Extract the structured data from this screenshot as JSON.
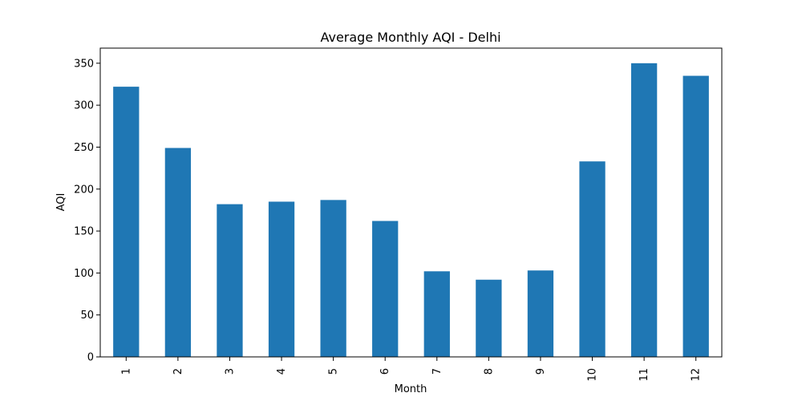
{
  "chart_data": {
    "type": "bar",
    "title": "Average Monthly AQI - Delhi",
    "xlabel": "Month",
    "ylabel": "AQI",
    "categories": [
      "1",
      "2",
      "3",
      "4",
      "5",
      "6",
      "7",
      "8",
      "9",
      "10",
      "11",
      "12"
    ],
    "values": [
      322,
      249,
      182,
      185,
      187,
      162,
      102,
      92,
      103,
      233,
      350,
      335
    ],
    "ylim": [
      0,
      368
    ],
    "yticks": [
      0,
      50,
      100,
      150,
      200,
      250,
      300,
      350
    ],
    "bar_color": "#1f77b4",
    "grid": false,
    "legend": "none"
  }
}
